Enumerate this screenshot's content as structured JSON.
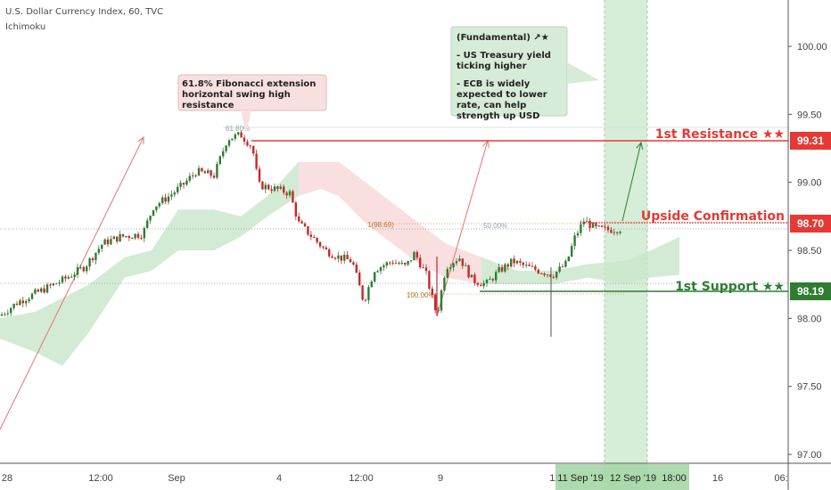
{
  "header": {
    "symbol": "U.S. Dollar Currency Index, 60, TVC",
    "indicator": "Ichimoku"
  },
  "colors": {
    "up": "#2e7d32",
    "down": "#c62828",
    "resistance": "#e53935",
    "support": "#2e7d32",
    "cloud_green": "#c8e6c9",
    "cloud_red": "#f8d7d7",
    "highlight": "#a5d6a7",
    "axis_text": "#444444"
  },
  "annotations": {
    "fib_note": "61.8% Fibonacci extension horizontal swing high resistance",
    "fundamental_title": "(Fundamental) ↗★",
    "fundamental_line1": "- US Treasury yield ticking higher",
    "fundamental_line2": "- ECB is widely expected to lower rate, can help strength up USD",
    "fib_618": "61.80%",
    "fib_1": "1(98.69)",
    "fib_50": "50.00%",
    "fib_100": "100.00%"
  },
  "levels": {
    "resistance": {
      "label": "1st Resistance ★★",
      "price": "99.31"
    },
    "confirmation": {
      "label": "Upside Confirmation",
      "price": "98.70"
    },
    "support": {
      "label": "1st Support ★★",
      "price": "98.19"
    }
  },
  "chart_data": {
    "type": "candlestick",
    "y_axis_ticks": [
      "100.00",
      "99.50",
      "99.00",
      "98.50",
      "98.00",
      "97.50",
      "97.00"
    ],
    "ylim": [
      96.95,
      100.35
    ],
    "x_axis_ticks": [
      "28",
      "12:00",
      "Sep",
      "4",
      "12:00",
      "9",
      "11",
      "16",
      "06:"
    ],
    "highlight_labels": [
      "11 Sep '19",
      "12 Sep '19",
      "18:00"
    ],
    "price_path": [
      [
        0,
        98.02
      ],
      [
        20,
        98.12
      ],
      [
        45,
        98.2
      ],
      [
        70,
        98.28
      ],
      [
        95,
        98.38
      ],
      [
        115,
        98.55
      ],
      [
        135,
        98.6
      ],
      [
        160,
        98.62
      ],
      [
        172,
        98.82
      ],
      [
        190,
        98.9
      ],
      [
        205,
        98.98
      ],
      [
        220,
        99.08
      ],
      [
        240,
        99.05
      ],
      [
        255,
        99.32
      ],
      [
        270,
        99.35
      ],
      [
        283,
        99.26
      ],
      [
        290,
        98.98
      ],
      [
        310,
        98.95
      ],
      [
        325,
        98.92
      ],
      [
        335,
        98.7
      ],
      [
        350,
        98.6
      ],
      [
        365,
        98.5
      ],
      [
        380,
        98.45
      ],
      [
        395,
        98.42
      ],
      [
        408,
        98.12
      ],
      [
        420,
        98.36
      ],
      [
        440,
        98.42
      ],
      [
        455,
        98.38
      ],
      [
        465,
        98.48
      ],
      [
        478,
        98.32
      ],
      [
        490,
        98.02
      ],
      [
        500,
        98.38
      ],
      [
        515,
        98.45
      ],
      [
        530,
        98.28
      ],
      [
        545,
        98.25
      ],
      [
        560,
        98.35
      ],
      [
        575,
        98.42
      ],
      [
        590,
        98.38
      ],
      [
        605,
        98.35
      ],
      [
        620,
        98.32
      ],
      [
        635,
        98.4
      ],
      [
        645,
        98.6
      ],
      [
        655,
        98.72
      ],
      [
        668,
        98.66
      ],
      [
        680,
        98.65
      ],
      [
        696,
        98.66
      ]
    ],
    "cloud": [
      [
        0,
        98.0,
        97.85
      ],
      [
        40,
        98.05,
        97.75
      ],
      [
        70,
        98.15,
        97.65
      ],
      [
        100,
        98.25,
        97.9
      ],
      [
        140,
        98.45,
        98.3
      ],
      [
        170,
        98.5,
        98.35
      ],
      [
        200,
        98.8,
        98.5
      ],
      [
        240,
        98.8,
        98.5
      ],
      [
        270,
        98.75,
        98.6
      ],
      [
        300,
        98.9,
        98.75
      ],
      [
        335,
        99.15,
        98.9
      ],
      [
        360,
        99.15,
        98.95
      ],
      [
        380,
        99.15,
        98.9
      ],
      [
        410,
        99.0,
        98.7
      ],
      [
        440,
        98.85,
        98.55
      ],
      [
        470,
        98.7,
        98.4
      ],
      [
        500,
        98.55,
        98.3
      ],
      [
        540,
        98.45,
        98.25
      ],
      [
        580,
        98.35,
        98.25
      ],
      [
        620,
        98.35,
        98.25
      ],
      [
        660,
        98.4,
        98.3
      ],
      [
        700,
        98.42,
        98.25
      ],
      [
        730,
        98.5,
        98.3
      ],
      [
        762,
        98.6,
        98.32
      ]
    ]
  }
}
